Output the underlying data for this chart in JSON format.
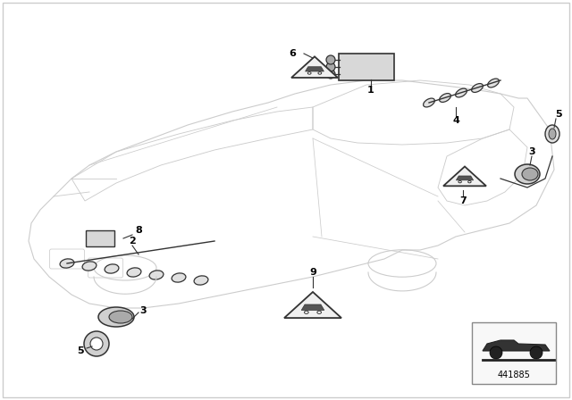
{
  "background_color": "#ffffff",
  "line_color": "#cccccc",
  "part_line_color": "#333333",
  "label_color": "#000000",
  "fig_width": 6.4,
  "fig_height": 4.48,
  "dpi": 100,
  "part_number": "441885",
  "car_lw": 0.8,
  "part_lw": 1.0
}
